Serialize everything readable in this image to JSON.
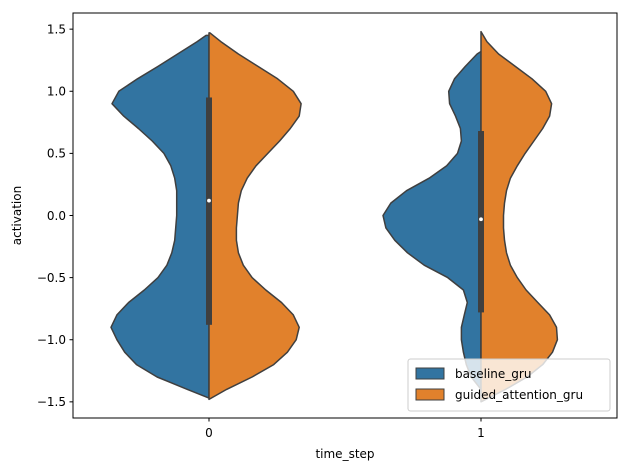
{
  "chart_data": {
    "type": "violin",
    "split": true,
    "xlabel": "time_step",
    "ylabel": "activation",
    "categories": [
      "0",
      "1"
    ],
    "ylim": [
      -1.63,
      1.63
    ],
    "yticks": [
      -1.5,
      -1.0,
      -0.5,
      0.0,
      0.5,
      1.0,
      1.5
    ],
    "ytick_labels": [
      "−1.5",
      "−1.0",
      "−0.5",
      "0.0",
      "0.5",
      "1.0",
      "1.5"
    ],
    "grid": false,
    "legend_position": "lower-right",
    "series": [
      {
        "name": "baseline_gru",
        "color": "#3274a1",
        "violins": [
          {
            "category": "0",
            "range": [
              -1.47,
              1.45
            ],
            "profile": [
              [
                -1.47,
                0.0
              ],
              [
                -1.4,
                0.22
              ],
              [
                -1.3,
                0.53
              ],
              [
                -1.2,
                0.74
              ],
              [
                -1.1,
                0.86
              ],
              [
                -1.0,
                0.94
              ],
              [
                -0.9,
                1.0
              ],
              [
                -0.8,
                0.94
              ],
              [
                -0.7,
                0.82
              ],
              [
                -0.6,
                0.66
              ],
              [
                -0.5,
                0.52
              ],
              [
                -0.4,
                0.43
              ],
              [
                -0.3,
                0.38
              ],
              [
                -0.2,
                0.35
              ],
              [
                -0.1,
                0.34
              ],
              [
                0.0,
                0.33
              ],
              [
                0.1,
                0.33
              ],
              [
                0.2,
                0.33
              ],
              [
                0.3,
                0.35
              ],
              [
                0.4,
                0.39
              ],
              [
                0.5,
                0.46
              ],
              [
                0.6,
                0.58
              ],
              [
                0.7,
                0.72
              ],
              [
                0.8,
                0.87
              ],
              [
                0.9,
                0.99
              ],
              [
                1.0,
                0.92
              ],
              [
                1.1,
                0.73
              ],
              [
                1.2,
                0.52
              ],
              [
                1.3,
                0.32
              ],
              [
                1.4,
                0.12
              ],
              [
                1.45,
                0.03
              ]
            ]
          },
          {
            "category": "1",
            "range": [
              -1.4,
              1.32
            ],
            "profile": [
              [
                -1.4,
                0.0
              ],
              [
                -1.3,
                0.1
              ],
              [
                -1.2,
                0.15
              ],
              [
                -1.1,
                0.18
              ],
              [
                -1.0,
                0.2
              ],
              [
                -0.9,
                0.2
              ],
              [
                -0.8,
                0.17
              ],
              [
                -0.7,
                0.14
              ],
              [
                -0.6,
                0.18
              ],
              [
                -0.5,
                0.34
              ],
              [
                -0.4,
                0.58
              ],
              [
                -0.3,
                0.75
              ],
              [
                -0.2,
                0.88
              ],
              [
                -0.1,
                0.97
              ],
              [
                0.0,
                1.0
              ],
              [
                0.1,
                0.92
              ],
              [
                0.2,
                0.76
              ],
              [
                0.3,
                0.53
              ],
              [
                0.4,
                0.35
              ],
              [
                0.5,
                0.24
              ],
              [
                0.6,
                0.2
              ],
              [
                0.7,
                0.21
              ],
              [
                0.8,
                0.26
              ],
              [
                0.9,
                0.32
              ],
              [
                1.0,
                0.33
              ],
              [
                1.1,
                0.27
              ],
              [
                1.2,
                0.16
              ],
              [
                1.3,
                0.04
              ],
              [
                1.32,
                0.0
              ]
            ]
          }
        ]
      },
      {
        "name": "guided_attention_gru",
        "color": "#e1812c",
        "violins": [
          {
            "category": "0",
            "range": [
              -1.48,
              1.47
            ],
            "profile": [
              [
                -1.48,
                0.0
              ],
              [
                -1.4,
                0.18
              ],
              [
                -1.3,
                0.44
              ],
              [
                -1.2,
                0.66
              ],
              [
                -1.1,
                0.8
              ],
              [
                -1.0,
                0.89
              ],
              [
                -0.9,
                0.92
              ],
              [
                -0.8,
                0.86
              ],
              [
                -0.7,
                0.74
              ],
              [
                -0.6,
                0.58
              ],
              [
                -0.5,
                0.44
              ],
              [
                -0.4,
                0.35
              ],
              [
                -0.3,
                0.3
              ],
              [
                -0.2,
                0.28
              ],
              [
                -0.1,
                0.28
              ],
              [
                0.0,
                0.29
              ],
              [
                0.1,
                0.3
              ],
              [
                0.2,
                0.33
              ],
              [
                0.3,
                0.39
              ],
              [
                0.4,
                0.48
              ],
              [
                0.5,
                0.6
              ],
              [
                0.6,
                0.72
              ],
              [
                0.7,
                0.83
              ],
              [
                0.8,
                0.92
              ],
              [
                0.9,
                0.94
              ],
              [
                1.0,
                0.86
              ],
              [
                1.1,
                0.7
              ],
              [
                1.2,
                0.5
              ],
              [
                1.3,
                0.3
              ],
              [
                1.4,
                0.12
              ],
              [
                1.47,
                0.01
              ]
            ]
          },
          {
            "category": "1",
            "range": [
              -1.5,
              1.48
            ],
            "profile": [
              [
                -1.5,
                0.0
              ],
              [
                -1.4,
                0.25
              ],
              [
                -1.3,
                0.47
              ],
              [
                -1.2,
                0.63
              ],
              [
                -1.1,
                0.73
              ],
              [
                -1.0,
                0.78
              ],
              [
                -0.9,
                0.77
              ],
              [
                -0.8,
                0.7
              ],
              [
                -0.7,
                0.58
              ],
              [
                -0.6,
                0.46
              ],
              [
                -0.5,
                0.37
              ],
              [
                -0.4,
                0.3
              ],
              [
                -0.3,
                0.26
              ],
              [
                -0.2,
                0.24
              ],
              [
                -0.1,
                0.23
              ],
              [
                0.0,
                0.23
              ],
              [
                0.1,
                0.24
              ],
              [
                0.2,
                0.26
              ],
              [
                0.3,
                0.3
              ],
              [
                0.4,
                0.37
              ],
              [
                0.5,
                0.45
              ],
              [
                0.6,
                0.54
              ],
              [
                0.7,
                0.63
              ],
              [
                0.8,
                0.7
              ],
              [
                0.9,
                0.72
              ],
              [
                1.0,
                0.66
              ],
              [
                1.1,
                0.52
              ],
              [
                1.2,
                0.35
              ],
              [
                1.3,
                0.18
              ],
              [
                1.4,
                0.06
              ],
              [
                1.48,
                0.0
              ]
            ]
          }
        ]
      }
    ],
    "inner_box": [
      {
        "category": "0",
        "q1": -0.88,
        "median": 0.12,
        "q3": 0.95
      },
      {
        "category": "1",
        "q1": -0.78,
        "median": -0.03,
        "q3": 0.68
      }
    ]
  }
}
